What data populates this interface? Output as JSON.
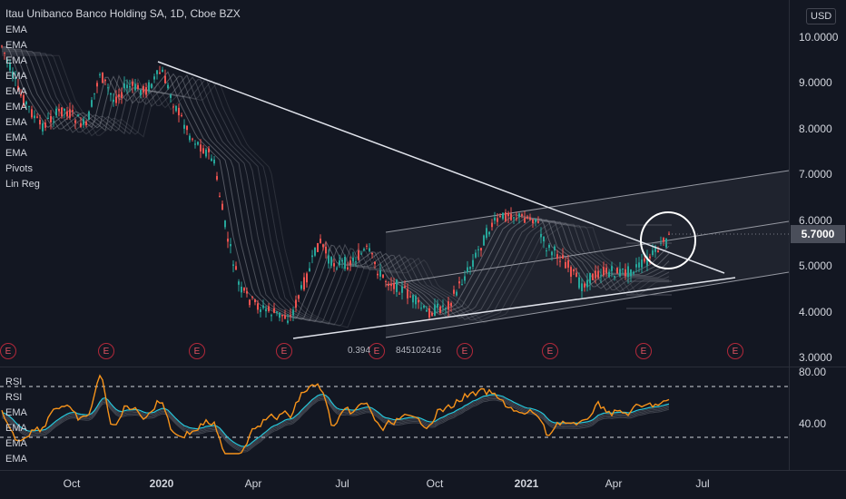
{
  "header": {
    "title": "Itau Unibanco Banco Holding SA, 1D, Cboe BZX",
    "indicators": [
      "EMA",
      "EMA",
      "EMA",
      "EMA",
      "EMA",
      "EMA",
      "EMA",
      "EMA",
      "EMA",
      "Pivots",
      "Lin Reg"
    ]
  },
  "rsi_pane": {
    "indicators": [
      "RSI",
      "RSI",
      "EMA",
      "EMA",
      "EMA",
      "EMA"
    ],
    "axis_labels": [
      "80.00",
      "40.00"
    ]
  },
  "price_axis": {
    "currency": "USD",
    "labels": [
      "10.0000",
      "9.0000",
      "8.0000",
      "7.0000",
      "6.0000",
      "5.0000",
      "4.0000",
      "3.0000"
    ],
    "last_price": "5.7000"
  },
  "time_axis": {
    "labels": [
      {
        "text": "Oct",
        "bold": false
      },
      {
        "text": "2020",
        "bold": true
      },
      {
        "text": "Apr",
        "bold": false
      },
      {
        "text": "Jul",
        "bold": false
      },
      {
        "text": "Oct",
        "bold": false
      },
      {
        "text": "2021",
        "bold": true
      },
      {
        "text": "Apr",
        "bold": false
      },
      {
        "text": "Jul",
        "bold": false
      }
    ]
  },
  "events": {
    "earnings_marker": "E",
    "count": 9
  },
  "linreg": {
    "label_prefix": "0.394",
    "label_suffix": "845102416"
  },
  "colors": {
    "background": "#131722",
    "candle_up": "#26a69a",
    "candle_down": "#ef5350",
    "rsi_line": "#f7931a",
    "rsi_ema": "#26c6da",
    "trendline": "#ffffff",
    "channel": "#9598a1"
  }
}
